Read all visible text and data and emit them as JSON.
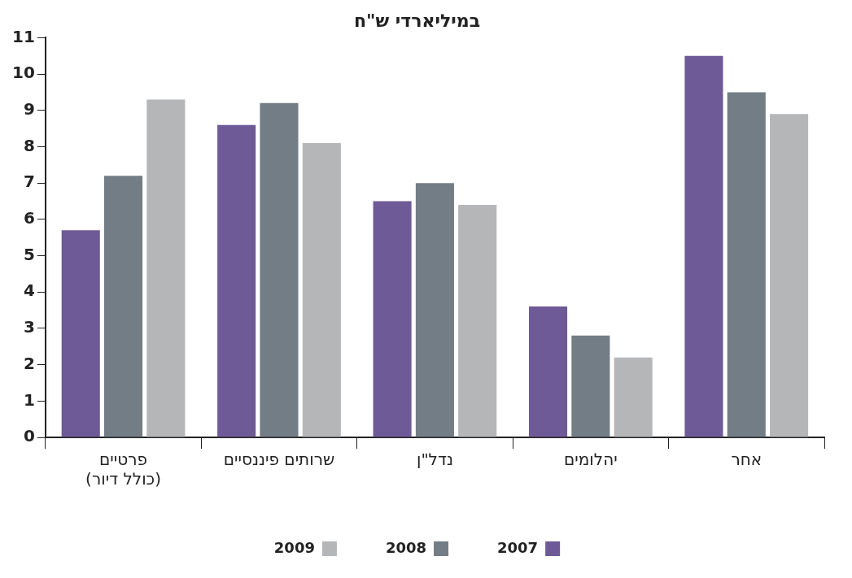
{
  "chart_data": {
    "type": "bar",
    "title": "במיליארדי ש\"ח",
    "categories": [
      "פרטיים\n(כולל דיור)",
      "שרותים פיננסיים",
      "נדל\"ן",
      "יהלומים",
      "אחר"
    ],
    "series": [
      {
        "name": "2007",
        "color": "#6e5a96",
        "values": [
          5.7,
          8.6,
          6.5,
          3.6,
          10.5
        ]
      },
      {
        "name": "2008",
        "color": "#737d85",
        "values": [
          7.2,
          9.2,
          7.0,
          2.8,
          9.5
        ]
      },
      {
        "name": "2009",
        "color": "#b4b6b8",
        "values": [
          9.3,
          8.1,
          6.4,
          2.2,
          8.9
        ]
      }
    ],
    "ylim": [
      0,
      11
    ],
    "yticks": [
      0,
      1,
      2,
      3,
      4,
      5,
      6,
      7,
      8,
      9,
      10,
      11
    ],
    "legend": "bottom"
  }
}
